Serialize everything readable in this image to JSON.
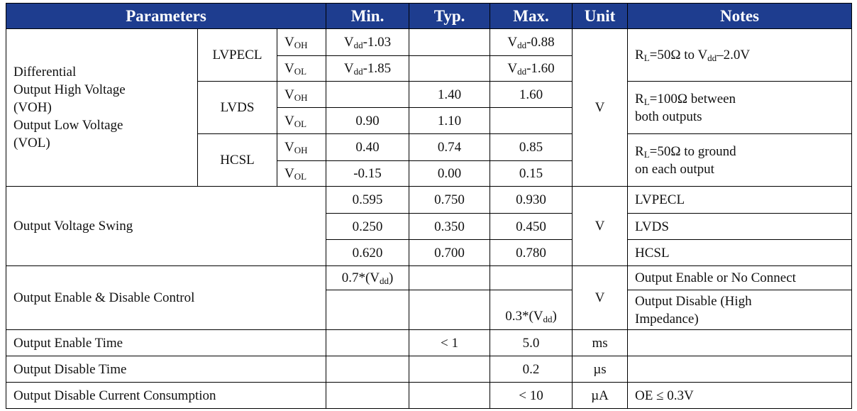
{
  "table": {
    "header": [
      "Parameters",
      "Min.",
      "Typ.",
      "Max.",
      "Unit",
      "Notes"
    ],
    "differential": {
      "label": [
        "Differential",
        "Output High Voltage",
        "(VOH)",
        "Output Low Voltage",
        "(VOL)"
      ],
      "unit": "V",
      "lvpecl": {
        "name": "LVPECL",
        "voh": {
          "level": [
            "V",
            {
              "sub": "OH"
            }
          ],
          "min": [
            "V",
            {
              "sub": "dd"
            },
            "-1.03"
          ],
          "max": [
            "V",
            {
              "sub": "dd"
            },
            "-0.88"
          ]
        },
        "vol": {
          "level": [
            "V",
            {
              "sub": "OL"
            }
          ],
          "min": [
            "V",
            {
              "sub": "dd"
            },
            "-1.85"
          ],
          "max": [
            "V",
            {
              "sub": "dd"
            },
            "-1.60"
          ]
        },
        "notes": [
          [
            "R",
            {
              "sub": "L"
            },
            "=50Ω to V",
            {
              "sub": "dd"
            },
            "–2.0V"
          ]
        ]
      },
      "lvds": {
        "name": "LVDS",
        "voh": {
          "level": [
            "V",
            {
              "sub": "OH"
            }
          ],
          "typ": "1.40",
          "max": "1.60"
        },
        "vol": {
          "level": [
            "V",
            {
              "sub": "OL"
            }
          ],
          "min": "0.90",
          "typ": "1.10"
        },
        "notes": [
          [
            "R",
            {
              "sub": "L"
            },
            "=100Ω between"
          ],
          "both outputs"
        ]
      },
      "hcsl": {
        "name": "HCSL",
        "voh": {
          "level": [
            "V",
            {
              "sub": "OH"
            }
          ],
          "min": "0.40",
          "typ": "0.74",
          "max": "0.85"
        },
        "vol": {
          "level": [
            "V",
            {
              "sub": "OL"
            }
          ],
          "min": "-0.15",
          "typ": "0.00",
          "max": "0.15"
        },
        "notes": [
          [
            "R",
            {
              "sub": "L"
            },
            "=50Ω to ground"
          ],
          "on each output"
        ]
      }
    },
    "swing": {
      "label": "Output Voltage Swing",
      "unit": "V",
      "rows": [
        {
          "min": "0.595",
          "typ": "0.750",
          "max": "0.930",
          "notes": "LVPECL"
        },
        {
          "min": "0.250",
          "typ": "0.350",
          "max": "0.450",
          "notes": "LVDS"
        },
        {
          "min": "0.620",
          "typ": "0.700",
          "max": "0.780",
          "notes": "HCSL"
        }
      ]
    },
    "enable": {
      "label": "Output Enable & Disable Control",
      "unit": "V",
      "rows": [
        {
          "min": [
            "0.7*(V",
            {
              "sub": "dd"
            },
            ")"
          ],
          "notes": "Output Enable or No Connect"
        },
        {
          "max": [
            "0.3*(V",
            {
              "sub": "dd"
            },
            ")"
          ],
          "notes": [
            "Output Disable (High",
            "Impedance)"
          ]
        }
      ]
    },
    "timing": [
      {
        "label": "Output Enable Time",
        "typ": "< 1",
        "max": "5.0",
        "unit": "ms"
      },
      {
        "label": "Output Disable Time",
        "max": "0.2",
        "unit": "µs"
      },
      {
        "label": "Output Disable Current Consumption",
        "max": "< 10",
        "unit": "µA",
        "notes": "OE ≤ 0.3V"
      }
    ]
  }
}
